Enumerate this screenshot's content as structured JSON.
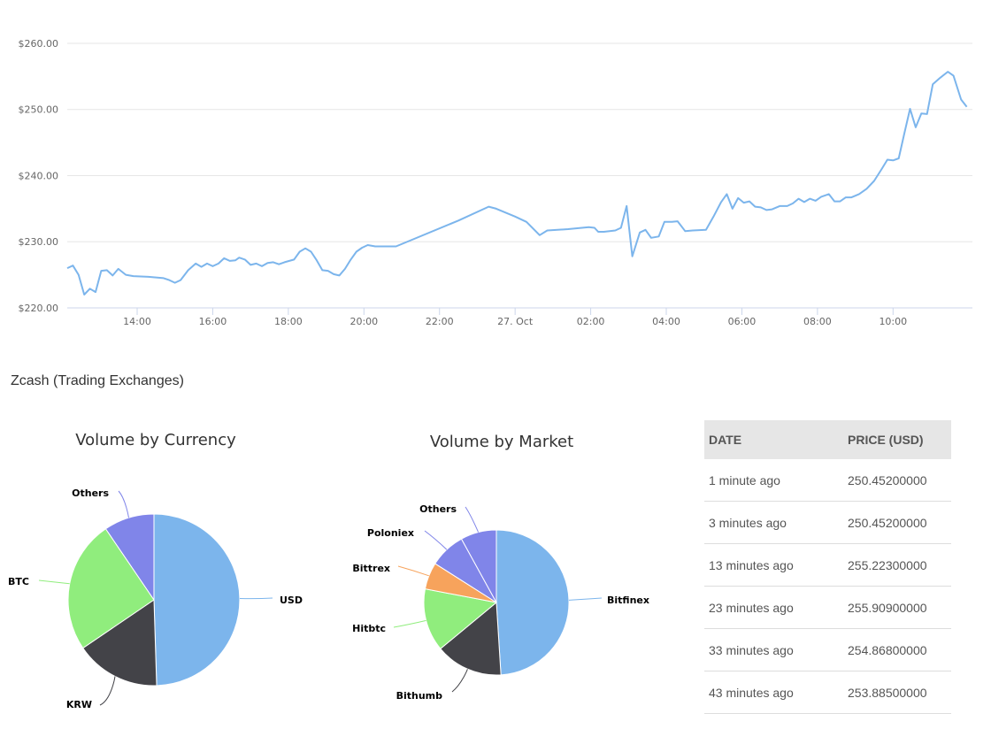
{
  "section_title": "Zcash (Trading Exchanges)",
  "chart_data": [
    {
      "type": "line",
      "y_ticks": [
        "$220.00",
        "$230.00",
        "$240.00",
        "$250.00",
        "$260.00"
      ],
      "ylim": [
        220,
        262
      ],
      "x_ticks": [
        "14:00",
        "16:00",
        "18:00",
        "20:00",
        "22:00",
        "27. Oct",
        "02:00",
        "04:00",
        "06:00",
        "08:00",
        "10:00"
      ],
      "x_tick_hours": [
        14,
        16,
        18,
        20,
        22,
        24,
        26,
        28,
        30,
        32,
        34
      ],
      "xlim": [
        12.15,
        36.1
      ],
      "color": "#7cb5ec",
      "series": [
        {
          "points": [
            [
              12.15,
              226.0
            ],
            [
              12.3,
              226.4
            ],
            [
              12.45,
              225.0
            ],
            [
              12.6,
              222.0
            ],
            [
              12.75,
              222.9
            ],
            [
              12.9,
              222.4
            ],
            [
              13.05,
              225.6
            ],
            [
              13.2,
              225.7
            ],
            [
              13.35,
              224.9
            ],
            [
              13.5,
              225.9
            ],
            [
              13.7,
              225.0
            ],
            [
              13.9,
              224.8
            ],
            [
              14.3,
              224.7
            ],
            [
              14.7,
              224.5
            ],
            [
              14.85,
              224.2
            ],
            [
              15.0,
              223.8
            ],
            [
              15.15,
              224.2
            ],
            [
              15.35,
              225.7
            ],
            [
              15.55,
              226.7
            ],
            [
              15.7,
              226.2
            ],
            [
              15.85,
              226.7
            ],
            [
              16.0,
              226.3
            ],
            [
              16.15,
              226.7
            ],
            [
              16.3,
              227.5
            ],
            [
              16.45,
              227.1
            ],
            [
              16.6,
              227.2
            ],
            [
              16.7,
              227.6
            ],
            [
              16.85,
              227.3
            ],
            [
              17.0,
              226.5
            ],
            [
              17.15,
              226.7
            ],
            [
              17.3,
              226.3
            ],
            [
              17.45,
              226.8
            ],
            [
              17.6,
              226.9
            ],
            [
              17.75,
              226.6
            ],
            [
              17.9,
              226.9
            ],
            [
              18.15,
              227.3
            ],
            [
              18.3,
              228.5
            ],
            [
              18.45,
              229.0
            ],
            [
              18.6,
              228.5
            ],
            [
              18.75,
              227.2
            ],
            [
              18.9,
              225.7
            ],
            [
              19.05,
              225.6
            ],
            [
              19.2,
              225.1
            ],
            [
              19.35,
              224.9
            ],
            [
              19.5,
              225.9
            ],
            [
              19.65,
              227.3
            ],
            [
              19.8,
              228.5
            ],
            [
              19.95,
              229.1
            ],
            [
              20.1,
              229.5
            ],
            [
              20.3,
              229.3
            ],
            [
              20.85,
              229.3
            ],
            [
              22.5,
              233.2
            ],
            [
              23.3,
              235.3
            ],
            [
              23.5,
              235.0
            ],
            [
              24.0,
              233.8
            ],
            [
              24.3,
              233.0
            ],
            [
              24.65,
              231.0
            ],
            [
              24.85,
              231.7
            ],
            [
              25.4,
              231.9
            ],
            [
              25.95,
              232.2
            ],
            [
              26.1,
              232.1
            ],
            [
              26.2,
              231.5
            ],
            [
              26.35,
              231.5
            ],
            [
              26.65,
              231.7
            ],
            [
              26.8,
              232.1
            ],
            [
              26.95,
              235.4
            ],
            [
              27.1,
              227.8
            ],
            [
              27.3,
              231.4
            ],
            [
              27.45,
              231.8
            ],
            [
              27.6,
              230.6
            ],
            [
              27.8,
              230.8
            ],
            [
              27.95,
              233.0
            ],
            [
              28.15,
              233.0
            ],
            [
              28.3,
              233.1
            ],
            [
              28.5,
              231.6
            ],
            [
              28.7,
              231.7
            ],
            [
              29.05,
              231.8
            ],
            [
              29.25,
              233.8
            ],
            [
              29.45,
              236.0
            ],
            [
              29.6,
              237.2
            ],
            [
              29.75,
              235.0
            ],
            [
              29.9,
              236.6
            ],
            [
              30.05,
              235.9
            ],
            [
              30.2,
              236.1
            ],
            [
              30.35,
              235.3
            ],
            [
              30.5,
              235.2
            ],
            [
              30.65,
              234.8
            ],
            [
              30.8,
              234.9
            ],
            [
              31.0,
              235.4
            ],
            [
              31.2,
              235.4
            ],
            [
              31.35,
              235.8
            ],
            [
              31.5,
              236.5
            ],
            [
              31.65,
              236.0
            ],
            [
              31.8,
              236.5
            ],
            [
              31.95,
              236.2
            ],
            [
              32.1,
              236.8
            ],
            [
              32.3,
              237.2
            ],
            [
              32.45,
              236.1
            ],
            [
              32.6,
              236.1
            ],
            [
              32.75,
              236.7
            ],
            [
              32.9,
              236.7
            ],
            [
              33.1,
              237.2
            ],
            [
              33.3,
              238.0
            ],
            [
              33.5,
              239.2
            ],
            [
              33.7,
              241.0
            ],
            [
              33.85,
              242.4
            ],
            [
              34.0,
              242.3
            ],
            [
              34.15,
              242.6
            ],
            [
              34.3,
              246.4
            ],
            [
              34.45,
              250.1
            ],
            [
              34.6,
              247.3
            ],
            [
              34.75,
              249.4
            ],
            [
              34.9,
              249.3
            ],
            [
              35.05,
              253.8
            ],
            [
              35.25,
              254.8
            ],
            [
              35.45,
              255.7
            ],
            [
              35.6,
              255.1
            ],
            [
              35.8,
              251.5
            ],
            [
              35.95,
              250.4
            ]
          ]
        }
      ]
    },
    {
      "type": "pie",
      "title": "Volume by Currency",
      "slices": [
        {
          "label": "USD",
          "value": 49.5,
          "color": "#7cb5ec"
        },
        {
          "label": "KRW",
          "value": 16.0,
          "color": "#434348"
        },
        {
          "label": "BTC",
          "value": 25.0,
          "color": "#90ed7d"
        },
        {
          "label": "Others",
          "value": 9.5,
          "color": "#8085e9"
        }
      ]
    },
    {
      "type": "pie",
      "title": "Volume by Market",
      "slices": [
        {
          "label": "Bitfinex",
          "value": 49.0,
          "color": "#7cb5ec"
        },
        {
          "label": "Bithumb",
          "value": 15.0,
          "color": "#434348"
        },
        {
          "label": "Hitbtc",
          "value": 14.0,
          "color": "#90ed7d"
        },
        {
          "label": "Bittrex",
          "value": 6.0,
          "color": "#f7a35c"
        },
        {
          "label": "Poloniex",
          "value": 8.0,
          "color": "#8085e9"
        },
        {
          "label": "Others",
          "value": 8.0,
          "color": "#8085e9"
        }
      ]
    }
  ],
  "table": {
    "headers": [
      "DATE",
      "PRICE (USD)"
    ],
    "rows": [
      {
        "date": "1 minute ago",
        "price": "250.45200000"
      },
      {
        "date": "3 minutes ago",
        "price": "250.45200000"
      },
      {
        "date": "13 minutes ago",
        "price": "255.22300000"
      },
      {
        "date": "23 minutes ago",
        "price": "255.90900000"
      },
      {
        "date": "33 minutes ago",
        "price": "254.86800000"
      },
      {
        "date": "43 minutes ago",
        "price": "253.88500000"
      }
    ]
  }
}
